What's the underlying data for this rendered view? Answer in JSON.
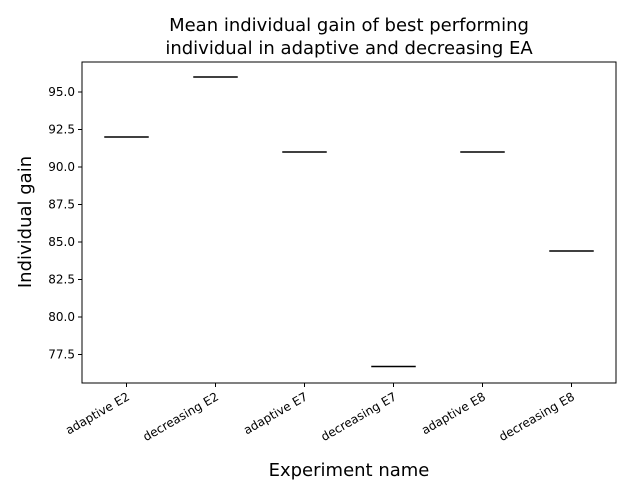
{
  "chart_data": {
    "type": "box",
    "title_lines": [
      "Mean individual gain of best performing",
      "individual in adaptive and decreasing EA"
    ],
    "xlabel": "Experiment name",
    "ylabel": "Individual gain",
    "categories": [
      "adaptive E2",
      "decreasing E2",
      "adaptive E7",
      "decreasing E7",
      "adaptive E8",
      "decreasing E8"
    ],
    "values": [
      92.0,
      96.0,
      91.0,
      76.7,
      91.0,
      84.4
    ],
    "ylim": [
      75.6,
      97.0
    ],
    "yticks": [
      77.5,
      80.0,
      82.5,
      85.0,
      87.5,
      90.0,
      92.5,
      95.0
    ],
    "ytick_labels": [
      "77.5",
      "80.0",
      "82.5",
      "85.0",
      "87.5",
      "90.0",
      "92.5",
      "95.0"
    ],
    "grid": false
  }
}
